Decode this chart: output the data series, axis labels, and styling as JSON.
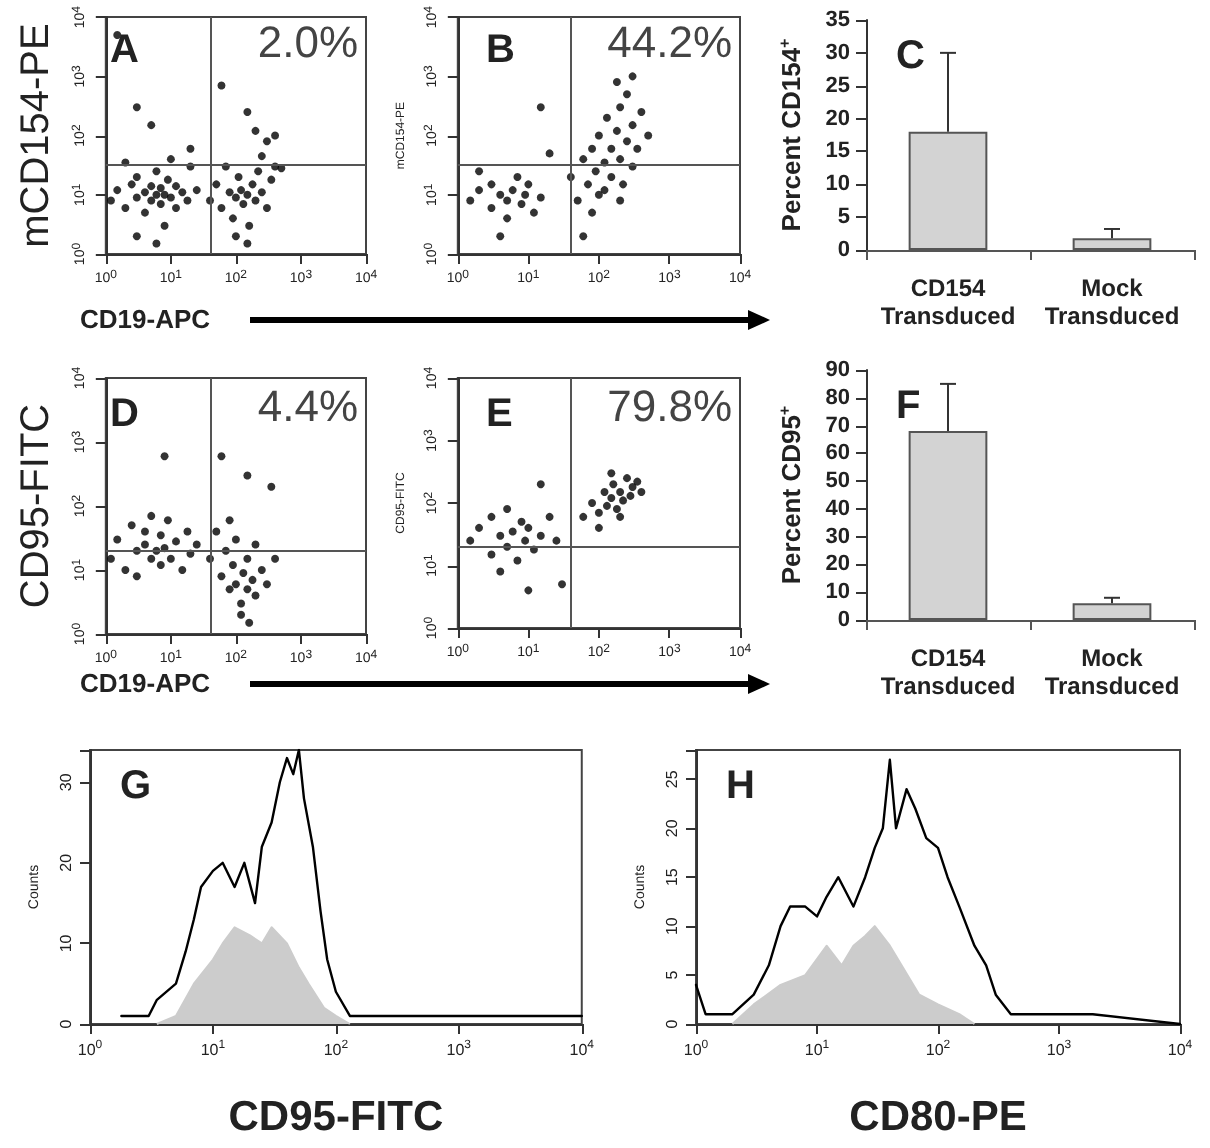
{
  "chart_data": [
    {
      "type": "scatter",
      "title": "A",
      "ylabel": "mCD154-PE",
      "xlabel": "CD19-APC",
      "annotations": [
        "2.0%"
      ],
      "log": "xy",
      "marker": "circle",
      "color": "#000000",
      "xlim": [
        1,
        10000
      ],
      "ylim": [
        1,
        10000
      ],
      "xticks": [
        {
          "value": 1,
          "label": "10$^{0}$"
        },
        {
          "value": 10,
          "label": "10$^{1}$"
        },
        {
          "value": 100,
          "label": "10$^{2}$"
        },
        {
          "value": 1000,
          "label": "10$^{3}$"
        },
        {
          "value": 10000,
          "label": "10$^{4}$"
        }
      ],
      "yticks": [
        {
          "value": 1,
          "label": "10$^{0}$"
        },
        {
          "value": 10,
          "label": "10$^{1}$"
        },
        {
          "value": 100,
          "label": "10$^{2}$"
        },
        {
          "value": 1000,
          "label": "10$^{3}$"
        },
        {
          "value": 10000,
          "label": "10$^{4}$"
        }
      ],
      "ref_lines": [
        {
          "axis": "x",
          "value": 40
        },
        {
          "axis": "y",
          "value": 32
        }
      ],
      "x": [
        1.2,
        1.5,
        2,
        2.5,
        3,
        3,
        4,
        4,
        5,
        5,
        6,
        6,
        7,
        7,
        8,
        8,
        9,
        10,
        12,
        12,
        15,
        18,
        20,
        25,
        3,
        6,
        2,
        10,
        40,
        50,
        60,
        70,
        80,
        90,
        100,
        110,
        120,
        130,
        150,
        160,
        180,
        200,
        220,
        250,
        300,
        350,
        400,
        500,
        150,
        100,
        250,
        3,
        5,
        200,
        60,
        150,
        300,
        1.5,
        20,
        400
      ],
      "values": [
        8,
        12,
        6,
        15,
        9,
        20,
        11,
        5,
        8,
        14,
        10,
        25,
        7,
        13,
        10,
        3,
        18,
        9,
        6,
        14,
        11,
        8,
        30,
        12,
        2,
        1.5,
        35,
        40,
        8,
        15,
        6,
        30,
        11,
        4,
        9,
        20,
        12,
        7,
        10,
        3,
        15,
        8,
        25,
        11,
        6,
        18,
        30,
        28,
        1.5,
        2,
        45,
        300,
        150,
        120,
        700,
        250,
        80,
        5000,
        60,
        100
      ]
    },
    {
      "type": "scatter",
      "title": "B",
      "ylabel": "mCD154-PE",
      "annotations": [
        "44.2%"
      ],
      "log": "xy",
      "marker": "circle",
      "color": "#000000",
      "xlim": [
        1,
        10000
      ],
      "ylim": [
        1,
        10000
      ],
      "xticks": [
        {
          "value": 1,
          "label": "10$^{0}$"
        },
        {
          "value": 10,
          "label": "10$^{1}$"
        },
        {
          "value": 100,
          "label": "10$^{2}$"
        },
        {
          "value": 1000,
          "label": "10$^{3}$"
        },
        {
          "value": 10000,
          "label": "10$^{4}$"
        }
      ],
      "yticks": [
        {
          "value": 1,
          "label": "10$^{0}$"
        },
        {
          "value": 10,
          "label": "10$^{1}$"
        },
        {
          "value": 100,
          "label": "10$^{2}$"
        },
        {
          "value": 1000,
          "label": "10$^{3}$"
        },
        {
          "value": 10000,
          "label": "10$^{4}$"
        }
      ],
      "ref_lines": [
        {
          "axis": "x",
          "value": 40
        },
        {
          "axis": "y",
          "value": 32
        }
      ],
      "x": [
        1.5,
        2,
        3,
        3,
        4,
        5,
        5,
        6,
        7,
        8,
        9,
        10,
        12,
        15,
        4,
        2,
        40,
        50,
        60,
        70,
        80,
        90,
        100,
        100,
        120,
        130,
        150,
        150,
        180,
        200,
        200,
        220,
        250,
        250,
        300,
        300,
        350,
        400,
        180,
        120,
        80,
        200,
        300,
        500,
        20,
        15,
        60
      ],
      "values": [
        8,
        12,
        6,
        15,
        10,
        4,
        8,
        12,
        20,
        7,
        10,
        15,
        5,
        9,
        2,
        25,
        20,
        8,
        40,
        15,
        60,
        25,
        10,
        100,
        35,
        200,
        20,
        60,
        120,
        40,
        300,
        15,
        80,
        500,
        30,
        150,
        60,
        250,
        800,
        12,
        5,
        8,
        1000,
        100,
        50,
        300,
        2
      ]
    },
    {
      "type": "bar",
      "title": "C",
      "ylabel": "Percent CD154$^{+}$",
      "categories": [
        "CD154\nTransduced",
        "Mock\nTransduced"
      ],
      "values": [
        18,
        1.8
      ],
      "errors": [
        [
          18,
          30
        ],
        [
          1.8,
          3.2
        ]
      ],
      "color": "#d3d3d3",
      "ylim": [
        0,
        35
      ],
      "yticks": [
        0,
        5,
        10,
        15,
        20,
        25,
        30,
        35
      ]
    },
    {
      "type": "scatter",
      "title": "D",
      "ylabel": "CD95-FITC",
      "xlabel": "CD19-APC",
      "annotations": [
        "4.4%"
      ],
      "log": "xy",
      "marker": "circle",
      "color": "#000000",
      "xlim": [
        1,
        10000
      ],
      "ylim": [
        1,
        10000
      ],
      "xticks": [
        {
          "value": 1,
          "label": "10$^{0}$"
        },
        {
          "value": 10,
          "label": "10$^{1}$"
        },
        {
          "value": 100,
          "label": "10$^{2}$"
        },
        {
          "value": 1000,
          "label": "10$^{3}$"
        },
        {
          "value": 10000,
          "label": "10$^{4}$"
        }
      ],
      "yticks": [
        {
          "value": 1,
          "label": "10$^{0}$"
        },
        {
          "value": 10,
          "label": "10$^{1}$"
        },
        {
          "value": 100,
          "label": "10$^{2}$"
        },
        {
          "value": 1000,
          "label": "10$^{3}$"
        },
        {
          "value": 10000,
          "label": "10$^{4}$"
        }
      ],
      "ref_lines": [
        {
          "axis": "x",
          "value": 40
        },
        {
          "axis": "y",
          "value": 20
        }
      ],
      "x": [
        1.2,
        1.5,
        2,
        2.5,
        3,
        3,
        4,
        4,
        5,
        5,
        6,
        7,
        7,
        8,
        9,
        10,
        12,
        15,
        18,
        20,
        25,
        40,
        50,
        60,
        70,
        80,
        90,
        100,
        100,
        120,
        130,
        150,
        150,
        180,
        200,
        200,
        250,
        300,
        400,
        120,
        160,
        80,
        8,
        60,
        150,
        350
      ],
      "values": [
        15,
        30,
        10,
        50,
        20,
        8,
        25,
        40,
        15,
        70,
        20,
        12,
        35,
        22,
        60,
        15,
        28,
        10,
        40,
        18,
        25,
        15,
        40,
        8,
        20,
        5,
        12,
        30,
        6,
        3,
        9,
        5,
        15,
        7,
        4,
        25,
        10,
        6,
        15,
        2,
        1.5,
        60,
        600,
        600,
        300,
        200
      ]
    },
    {
      "type": "scatter",
      "title": "E",
      "ylabel": "CD95-FITC",
      "annotations": [
        "79.8%"
      ],
      "log": "xy",
      "marker": "circle",
      "color": "#000000",
      "xlim": [
        1,
        10000
      ],
      "ylim": [
        1,
        10000
      ],
      "xticks": [
        {
          "value": 1,
          "label": "10$^{0}$"
        },
        {
          "value": 10,
          "label": "10$^{1}$"
        },
        {
          "value": 100,
          "label": "10$^{2}$"
        },
        {
          "value": 1000,
          "label": "10$^{3}$"
        },
        {
          "value": 10000,
          "label": "10$^{4}$"
        }
      ],
      "yticks": [
        {
          "value": 1,
          "label": "10$^{0}$"
        },
        {
          "value": 10,
          "label": "10$^{1}$"
        },
        {
          "value": 100,
          "label": "10$^{2}$"
        },
        {
          "value": 1000,
          "label": "10$^{3}$"
        },
        {
          "value": 10000,
          "label": "10$^{4}$"
        }
      ],
      "ref_lines": [
        {
          "axis": "x",
          "value": 40
        },
        {
          "axis": "y",
          "value": 20
        }
      ],
      "x": [
        1.5,
        2,
        3,
        3,
        4,
        5,
        5,
        6,
        7,
        8,
        9,
        10,
        12,
        15,
        20,
        4,
        25,
        60,
        80,
        100,
        120,
        130,
        150,
        160,
        180,
        200,
        220,
        250,
        280,
        300,
        350,
        200,
        150,
        100,
        400,
        15,
        30,
        10
      ],
      "values": [
        25,
        40,
        15,
        60,
        30,
        20,
        80,
        35,
        12,
        50,
        25,
        40,
        18,
        30,
        60,
        8,
        25,
        60,
        100,
        70,
        150,
        90,
        120,
        200,
        80,
        150,
        110,
        250,
        130,
        180,
        220,
        60,
        300,
        40,
        150,
        200,
        5,
        4
      ]
    },
    {
      "type": "bar",
      "title": "F",
      "ylabel": "Percent CD95$^{+}$",
      "categories": [
        "CD154\nTransduced",
        "Mock\nTransduced"
      ],
      "values": [
        68,
        6
      ],
      "errors": [
        [
          68,
          85
        ],
        [
          6,
          8
        ]
      ],
      "color": "#d3d3d3",
      "ylim": [
        0,
        90
      ],
      "yticks": [
        0,
        10,
        20,
        30,
        40,
        50,
        60,
        70,
        80,
        90
      ]
    },
    {
      "type": "line",
      "title": "G",
      "xlabel": "CD95-FITC",
      "ylabel": "Counts",
      "log": "x",
      "marker": "none",
      "xlim": [
        1,
        10000
      ],
      "ylim": [
        0,
        34
      ],
      "xticks": [
        {
          "value": 1,
          "label": "10$^{0}$"
        },
        {
          "value": 10,
          "label": "10$^{1}$"
        },
        {
          "value": 100,
          "label": "10$^{2}$"
        },
        {
          "value": 1000,
          "label": "10$^{3}$"
        },
        {
          "value": 10000,
          "label": "10$^{4}$"
        }
      ],
      "yticks": [
        0,
        10,
        20,
        30
      ],
      "series": [
        {
          "type": "area",
          "color": "#cccccc",
          "x": [
            3.5,
            5,
            7,
            10,
            12,
            15,
            20,
            25,
            30,
            40,
            50,
            60,
            80,
            100,
            130
          ],
          "values": [
            0,
            1,
            5,
            8,
            10,
            12,
            11,
            10,
            12,
            10,
            7,
            5,
            2,
            1,
            0
          ]
        },
        {
          "type": "line",
          "color": "#000000",
          "x": [
            1.8,
            3,
            3.5,
            5,
            6,
            7,
            8,
            10,
            12,
            15,
            18,
            22,
            25,
            30,
            35,
            40,
            45,
            50,
            55,
            65,
            75,
            85,
            100,
            130,
            200,
            300,
            500,
            1000,
            3000,
            10000
          ],
          "values": [
            1,
            1,
            3,
            5,
            9,
            13,
            17,
            19,
            20,
            17,
            20,
            15,
            22,
            25,
            30,
            33,
            31,
            34,
            28,
            22,
            14,
            8,
            4,
            1,
            1,
            1,
            1,
            1,
            1,
            1
          ]
        }
      ]
    },
    {
      "type": "line",
      "title": "H",
      "xlabel": "CD80-PE",
      "ylabel": "Counts",
      "log": "x",
      "marker": "none",
      "xlim": [
        1,
        10000
      ],
      "ylim": [
        0,
        28
      ],
      "xticks": [
        {
          "value": 1,
          "label": "10$^{0}$"
        },
        {
          "value": 10,
          "label": "10$^{1}$"
        },
        {
          "value": 100,
          "label": "10$^{2}$"
        },
        {
          "value": 1000,
          "label": "10$^{3}$"
        },
        {
          "value": 10000,
          "label": "10$^{4}$"
        }
      ],
      "yticks": [
        0,
        5,
        10,
        15,
        20,
        25
      ],
      "series": [
        {
          "type": "area",
          "color": "#cccccc",
          "x": [
            2,
            3,
            5,
            8,
            12,
            16,
            20,
            25,
            30,
            40,
            50,
            70,
            100,
            150,
            200
          ],
          "values": [
            0,
            2,
            4,
            5,
            8,
            6,
            8,
            9,
            10,
            8,
            6,
            3,
            2,
            1,
            0
          ]
        },
        {
          "type": "line",
          "color": "#000000",
          "x": [
            1,
            1.2,
            2,
            3,
            4,
            5,
            6,
            8,
            10,
            12,
            15,
            20,
            25,
            30,
            35,
            40,
            45,
            55,
            65,
            80,
            100,
            120,
            150,
            200,
            250,
            300,
            400,
            600,
            900,
            1900,
            10000
          ],
          "values": [
            4,
            1,
            1,
            3,
            6,
            10,
            12,
            12,
            11,
            13,
            15,
            12,
            15,
            18,
            20,
            27,
            20,
            24,
            22,
            19,
            18,
            15,
            12,
            8,
            6,
            3,
            1,
            1,
            1,
            1,
            0
          ]
        }
      ]
    }
  ]
}
